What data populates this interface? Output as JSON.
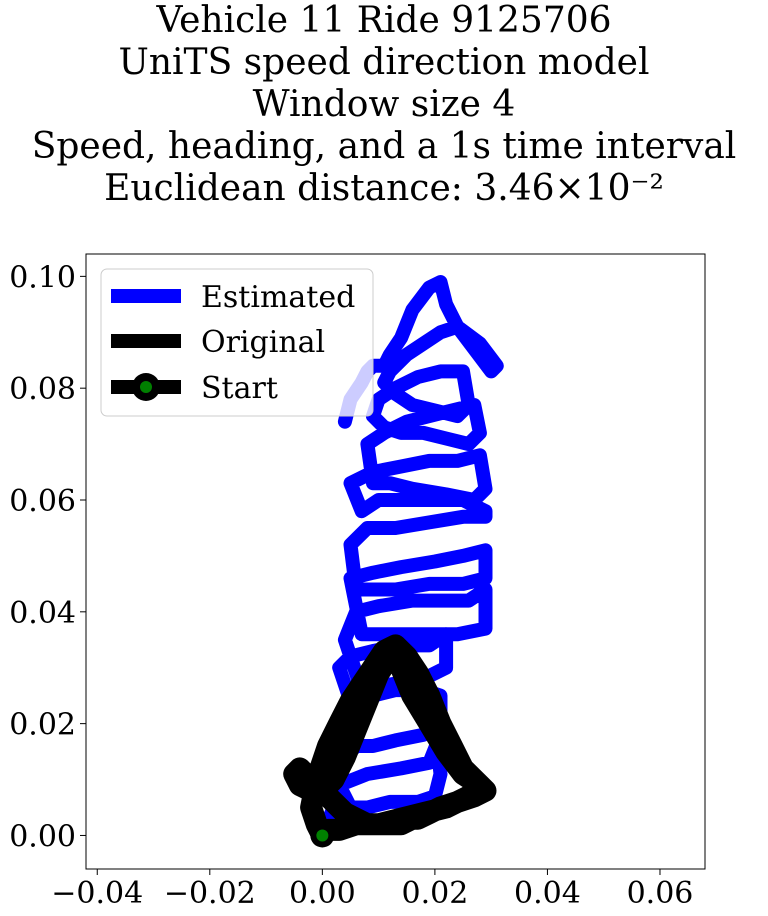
{
  "chart_data": {
    "type": "line",
    "title": [
      "Vehicle 11 Ride 9125706",
      "UniTS speed direction model",
      "Window size 4",
      "Speed, heading, and a 1s time interval",
      "Euclidean distance: 3.46×10⁻²"
    ],
    "xlabel": "",
    "ylabel": "",
    "xlim": [
      -0.042,
      0.068
    ],
    "ylim": [
      -0.006,
      0.104
    ],
    "x_ticks": [
      -0.04,
      -0.02,
      0.0,
      0.02,
      0.04,
      0.06
    ],
    "x_tick_labels": [
      "−0.04",
      "−0.02",
      "0.00",
      "0.02",
      "0.04",
      "0.06"
    ],
    "y_ticks": [
      0.0,
      0.02,
      0.04,
      0.06,
      0.08,
      0.1
    ],
    "y_tick_labels": [
      "0.00",
      "0.02",
      "0.04",
      "0.06",
      "0.08",
      "0.10"
    ],
    "grid": false,
    "legend_position": "upper-left",
    "series": [
      {
        "name": "Estimated",
        "color": "#0000ff",
        "x": [
          0.0,
          0.002,
          0.003,
          0.004,
          0.006,
          0.009,
          0.013,
          0.018,
          0.02,
          0.021,
          0.02,
          0.017,
          0.012,
          0.008,
          0.005,
          0.003,
          0.008,
          0.014,
          0.019,
          0.021,
          0.021,
          0.018,
          0.013,
          0.009,
          0.005,
          0.003,
          0.005,
          0.009,
          0.014,
          0.019,
          0.022,
          0.022,
          0.018,
          0.012,
          0.007,
          0.004,
          0.006,
          0.01,
          0.016,
          0.022,
          0.026,
          0.029,
          0.029,
          0.024,
          0.018,
          0.012,
          0.007,
          0.005,
          0.009,
          0.014,
          0.02,
          0.025,
          0.029,
          0.029,
          0.025,
          0.019,
          0.013,
          0.009,
          0.006,
          0.005,
          0.008,
          0.013,
          0.019,
          0.025,
          0.029,
          0.029,
          0.025,
          0.019,
          0.014,
          0.01,
          0.007,
          0.005,
          0.009,
          0.014,
          0.019,
          0.024,
          0.028,
          0.029,
          0.027,
          0.022,
          0.016,
          0.012,
          0.009,
          0.008,
          0.011,
          0.015,
          0.019,
          0.023,
          0.027,
          0.028,
          0.026,
          0.022,
          0.018,
          0.014,
          0.011,
          0.009,
          0.01,
          0.013,
          0.017,
          0.021,
          0.025,
          0.026,
          0.024,
          0.02,
          0.016,
          0.013,
          0.011,
          0.012,
          0.015,
          0.018,
          0.021,
          0.024,
          0.028,
          0.031,
          0.03,
          0.027,
          0.024,
          0.022,
          0.021,
          0.019,
          0.016,
          0.014,
          0.012,
          0.011,
          0.009,
          0.008,
          0.007,
          0.005,
          0.004
        ],
        "y": [
          0.0,
          0.005,
          0.01,
          0.014,
          0.016,
          0.016,
          0.017,
          0.018,
          0.02,
          0.011,
          0.007,
          0.006,
          0.006,
          0.005,
          0.005,
          0.009,
          0.011,
          0.012,
          0.013,
          0.018,
          0.025,
          0.026,
          0.026,
          0.025,
          0.024,
          0.03,
          0.032,
          0.033,
          0.034,
          0.034,
          0.036,
          0.03,
          0.028,
          0.027,
          0.026,
          0.035,
          0.04,
          0.041,
          0.042,
          0.042,
          0.042,
          0.044,
          0.037,
          0.036,
          0.036,
          0.036,
          0.036,
          0.046,
          0.047,
          0.048,
          0.049,
          0.05,
          0.051,
          0.046,
          0.045,
          0.045,
          0.044,
          0.044,
          0.044,
          0.052,
          0.055,
          0.055,
          0.056,
          0.057,
          0.057,
          0.058,
          0.06,
          0.06,
          0.06,
          0.06,
          0.058,
          0.063,
          0.065,
          0.066,
          0.067,
          0.067,
          0.068,
          0.062,
          0.06,
          0.061,
          0.062,
          0.063,
          0.063,
          0.07,
          0.072,
          0.074,
          0.075,
          0.076,
          0.077,
          0.072,
          0.07,
          0.071,
          0.072,
          0.072,
          0.073,
          0.075,
          0.078,
          0.08,
          0.082,
          0.083,
          0.083,
          0.077,
          0.075,
          0.076,
          0.077,
          0.079,
          0.081,
          0.083,
          0.086,
          0.088,
          0.09,
          0.091,
          0.088,
          0.084,
          0.083,
          0.087,
          0.091,
          0.095,
          0.099,
          0.098,
          0.094,
          0.089,
          0.086,
          0.084,
          0.084,
          0.083,
          0.081,
          0.078,
          0.074
        ]
      },
      {
        "name": "Original",
        "color": "#000000",
        "x": [
          0.0,
          -0.001,
          -0.002,
          -0.001,
          0.001,
          0.003,
          0.005,
          0.007,
          0.009,
          0.011,
          0.013,
          0.015,
          0.017,
          0.019,
          0.021,
          0.023,
          0.025,
          0.028,
          0.029,
          0.027,
          0.024,
          0.021,
          0.019,
          0.017,
          0.016,
          0.014,
          0.012,
          0.01,
          0.008,
          0.006,
          0.004,
          0.002,
          0.0,
          -0.002,
          -0.004,
          -0.005,
          -0.004,
          -0.002,
          0.0,
          0.002,
          0.004,
          0.006,
          0.008,
          0.01,
          0.012,
          0.014,
          0.016,
          0.019,
          0.022,
          0.025,
          0.028,
          0.026,
          0.022,
          0.018,
          0.014,
          0.01,
          0.006,
          0.003,
          0.001,
          0.0,
          0.0
        ],
        "y": [
          0.0,
          0.002,
          0.005,
          0.01,
          0.016,
          0.02,
          0.024,
          0.027,
          0.03,
          0.033,
          0.034,
          0.032,
          0.029,
          0.025,
          0.02,
          0.016,
          0.012,
          0.009,
          0.008,
          0.007,
          0.006,
          0.005,
          0.004,
          0.003,
          0.003,
          0.002,
          0.002,
          0.002,
          0.002,
          0.003,
          0.004,
          0.006,
          0.008,
          0.01,
          0.012,
          0.011,
          0.009,
          0.008,
          0.008,
          0.01,
          0.014,
          0.019,
          0.024,
          0.029,
          0.032,
          0.03,
          0.025,
          0.02,
          0.015,
          0.011,
          0.009,
          0.007,
          0.005,
          0.004,
          0.003,
          0.002,
          0.002,
          0.001,
          0.001,
          0.0,
          0.0
        ]
      },
      {
        "name": "Start",
        "color": "#008000",
        "x": [
          0.0
        ],
        "y": [
          0.0
        ]
      }
    ]
  }
}
